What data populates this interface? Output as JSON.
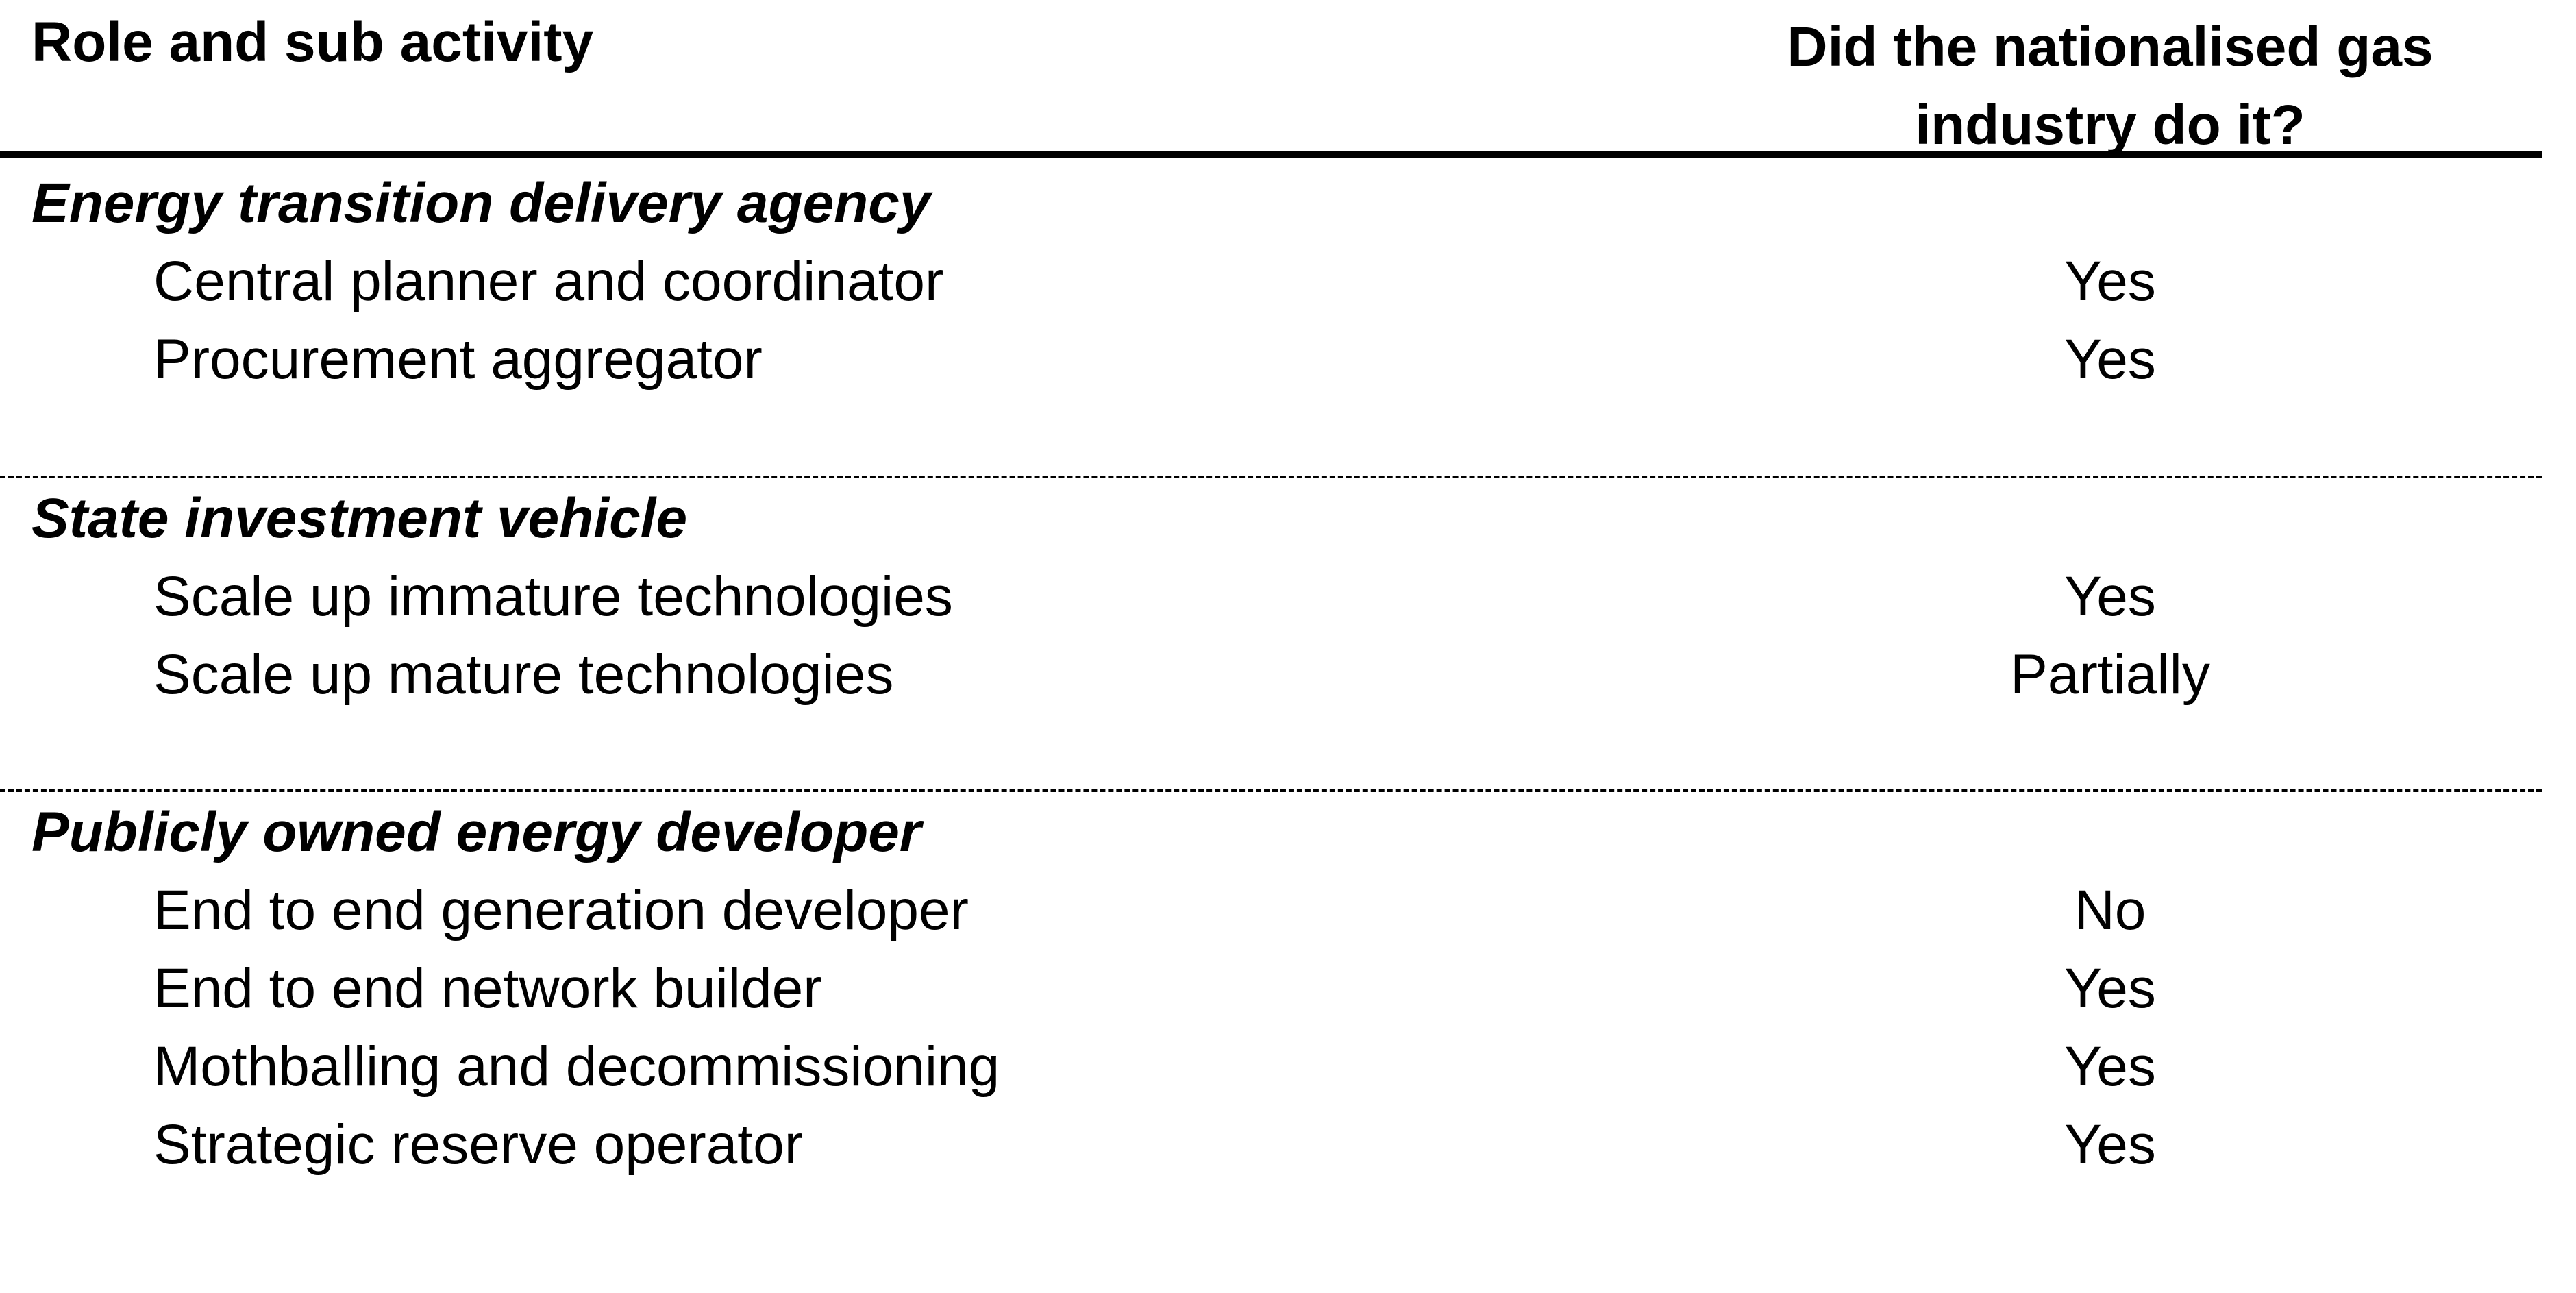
{
  "header": {
    "col_role": "Role and sub activity",
    "col_answer_line1": "Did the nationalised gas",
    "col_answer_line2": "industry do it?"
  },
  "sections": [
    {
      "title": "Energy transition delivery agency",
      "rows": [
        {
          "activity": "Central planner and coordinator",
          "answer": "Yes"
        },
        {
          "activity": "Procurement aggregator",
          "answer": "Yes"
        }
      ]
    },
    {
      "title": "State investment vehicle",
      "rows": [
        {
          "activity": "Scale up immature technologies",
          "answer": "Yes"
        },
        {
          "activity": "Scale up mature technologies",
          "answer": "Partially"
        }
      ]
    },
    {
      "title": "Publicly owned energy developer",
      "rows": [
        {
          "activity": "End to end generation developer",
          "answer": "No"
        },
        {
          "activity": "End to end network builder",
          "answer": "Yes"
        },
        {
          "activity": "Mothballing and decommissioning",
          "answer": "Yes"
        },
        {
          "activity": "Strategic reserve operator",
          "answer": "Yes"
        }
      ]
    }
  ]
}
